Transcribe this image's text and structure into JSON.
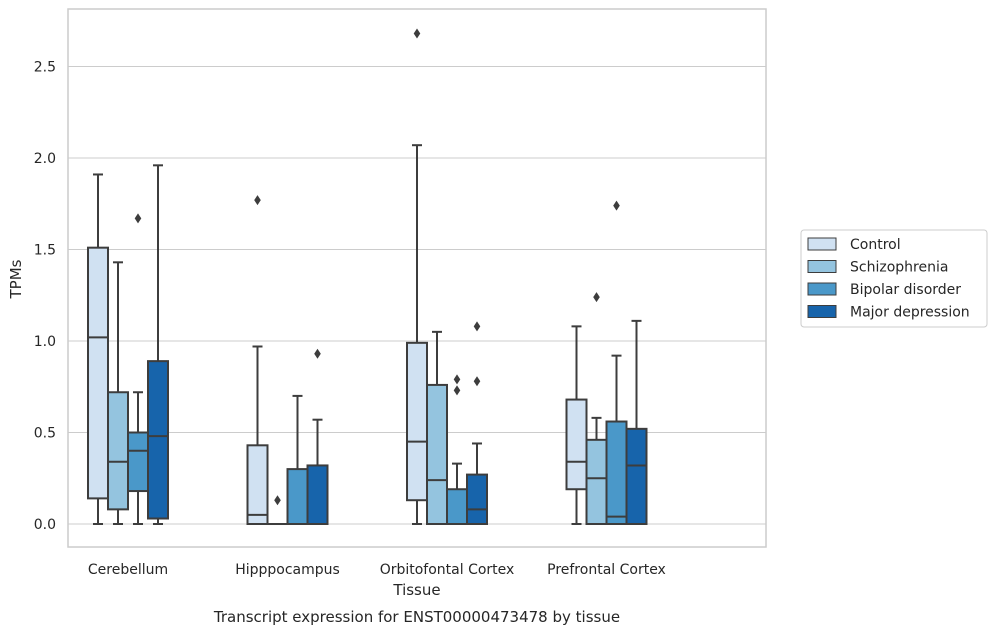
{
  "chart_data": {
    "type": "box",
    "title": "Transcript expression for ENST00000473478 by tissue",
    "xlabel": "Tissue",
    "ylabel": "TPMs",
    "ylim": [
      -0.13,
      2.83
    ],
    "yticks": [
      0.0,
      0.5,
      1.0,
      1.5,
      2.0,
      2.5
    ],
    "ytick_labels": [
      "0.0",
      "0.5",
      "1.0",
      "1.5",
      "2.0",
      "2.5"
    ],
    "grid": true,
    "legend_position": "right",
    "categories": [
      "Cerebellum",
      "Hipppocampus",
      "Orbitofontal Cortex",
      "Prefrontal Cortex"
    ],
    "series": [
      {
        "name": "Control",
        "color": "#d0e1f2",
        "boxes": [
          {
            "whislo": 0.0,
            "q1": 0.14,
            "med": 1.02,
            "q3": 1.51,
            "whishi": 1.91,
            "fliers": []
          },
          {
            "whislo": 0.0,
            "q1": 0.0,
            "med": 0.05,
            "q3": 0.43,
            "whishi": 0.97,
            "fliers": [
              1.77
            ]
          },
          {
            "whislo": 0.0,
            "q1": 0.13,
            "med": 0.45,
            "q3": 0.99,
            "whishi": 2.07,
            "fliers": [
              2.68
            ]
          },
          {
            "whislo": 0.0,
            "q1": 0.19,
            "med": 0.34,
            "q3": 0.68,
            "whishi": 1.08,
            "fliers": []
          }
        ]
      },
      {
        "name": "Schizophrenia",
        "color": "#94c4df",
        "boxes": [
          {
            "whislo": 0.0,
            "q1": 0.08,
            "med": 0.34,
            "q3": 0.72,
            "whishi": 1.43,
            "fliers": []
          },
          {
            "whislo": 0.0,
            "q1": 0.0,
            "med": 0.0,
            "q3": 0.0,
            "whishi": 0.0,
            "fliers": [
              0.13
            ]
          },
          {
            "whislo": 0.0,
            "q1": 0.0,
            "med": 0.24,
            "q3": 0.76,
            "whishi": 1.05,
            "fliers": []
          },
          {
            "whislo": 0.0,
            "q1": 0.0,
            "med": 0.25,
            "q3": 0.46,
            "whishi": 0.58,
            "fliers": [
              1.24
            ]
          }
        ]
      },
      {
        "name": "Bipolar disorder",
        "color": "#4a98c9",
        "boxes": [
          {
            "whislo": 0.0,
            "q1": 0.18,
            "med": 0.4,
            "q3": 0.5,
            "whishi": 0.72,
            "fliers": [
              1.67
            ]
          },
          {
            "whislo": 0.0,
            "q1": 0.0,
            "med": 0.0,
            "q3": 0.3,
            "whishi": 0.7,
            "fliers": []
          },
          {
            "whislo": 0.0,
            "q1": 0.0,
            "med": 0.0,
            "q3": 0.19,
            "whishi": 0.33,
            "fliers": [
              0.73,
              0.79
            ]
          },
          {
            "whislo": 0.0,
            "q1": 0.0,
            "med": 0.04,
            "q3": 0.56,
            "whishi": 0.92,
            "fliers": [
              1.74
            ]
          }
        ]
      },
      {
        "name": "Major depression",
        "color": "#1764ab",
        "boxes": [
          {
            "whislo": 0.0,
            "q1": 0.03,
            "med": 0.48,
            "q3": 0.89,
            "whishi": 1.96,
            "fliers": []
          },
          {
            "whislo": 0.0,
            "q1": 0.0,
            "med": 0.0,
            "q3": 0.32,
            "whishi": 0.57,
            "fliers": [
              0.93
            ]
          },
          {
            "whislo": 0.0,
            "q1": 0.0,
            "med": 0.08,
            "q3": 0.27,
            "whishi": 0.44,
            "fliers": [
              0.78,
              1.08
            ]
          },
          {
            "whislo": 0.0,
            "q1": 0.0,
            "med": 0.32,
            "q3": 0.52,
            "whishi": 1.11,
            "fliers": []
          }
        ]
      }
    ]
  }
}
